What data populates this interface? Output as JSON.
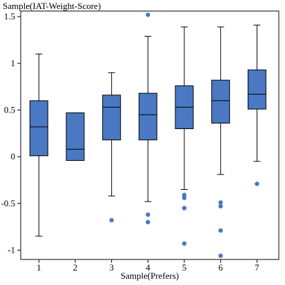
{
  "chart_data": {
    "type": "box",
    "ylabel": "Sample(IAT-Weight-Score)",
    "xlabel": "Sample(Prefers)",
    "categories": [
      "1",
      "2",
      "3",
      "4",
      "5",
      "6",
      "7"
    ],
    "xlim": [
      0.5,
      7.6
    ],
    "ylim": [
      -1.1,
      1.56
    ],
    "yticks": [
      -1,
      -0.5,
      0,
      0.5,
      1,
      1.5
    ],
    "ytick_labels": [
      "-1",
      "-0.5",
      "0",
      "0.5",
      "1",
      "1.5"
    ],
    "box_color": "#4a78c2",
    "outlier_color": "#4a78c2",
    "boxes": [
      {
        "category": "1",
        "whisker_low": -0.85,
        "q1": 0.01,
        "median": 0.32,
        "q3": 0.6,
        "whisker_high": 1.1,
        "outliers": []
      },
      {
        "category": "2",
        "whisker_low": -0.04,
        "q1": -0.04,
        "median": 0.08,
        "q3": 0.47,
        "whisker_high": 0.47,
        "outliers": []
      },
      {
        "category": "3",
        "whisker_low": -0.42,
        "q1": 0.18,
        "median": 0.53,
        "q3": 0.66,
        "whisker_high": 0.9,
        "outliers": [
          -0.68
        ]
      },
      {
        "category": "4",
        "whisker_low": -0.48,
        "q1": 0.18,
        "median": 0.45,
        "q3": 0.68,
        "whisker_high": 1.29,
        "outliers": [
          1.52,
          -0.62,
          -0.7
        ]
      },
      {
        "category": "5",
        "whisker_low": -0.35,
        "q1": 0.3,
        "median": 0.53,
        "q3": 0.76,
        "whisker_high": 1.39,
        "outliers": [
          -0.41,
          -0.44,
          -0.55,
          -0.93
        ]
      },
      {
        "category": "6",
        "whisker_low": -0.19,
        "q1": 0.36,
        "median": 0.6,
        "q3": 0.82,
        "whisker_high": 1.39,
        "outliers": [
          -0.49,
          -0.53,
          -0.79,
          -1.06
        ]
      },
      {
        "category": "7",
        "whisker_low": -0.05,
        "q1": 0.51,
        "median": 0.67,
        "q3": 0.93,
        "whisker_high": 1.41,
        "outliers": [
          -0.29
        ]
      }
    ]
  }
}
